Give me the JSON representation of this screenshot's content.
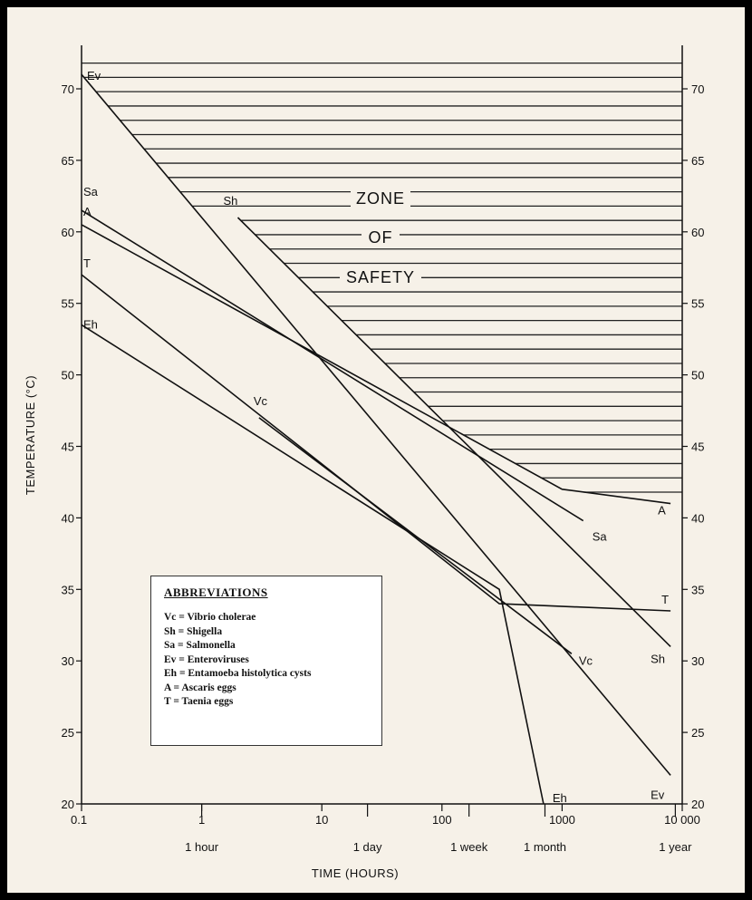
{
  "chart_data": {
    "type": "line",
    "title": "",
    "xlabel": "TIME (HOURS)",
    "ylabel": "TEMPERATURE (°C)",
    "xscale": "log",
    "xlim": [
      0.1,
      10000
    ],
    "ylim": [
      20,
      73
    ],
    "x_ticks": [
      "0.1",
      "1",
      "10",
      "100",
      "1000",
      "10 000"
    ],
    "x_time_markers": [
      {
        "label": "1 hour",
        "x": 1
      },
      {
        "label": "1 day",
        "x": 24
      },
      {
        "label": "1 week",
        "x": 168
      },
      {
        "label": "1 month",
        "x": 720
      },
      {
        "label": "1 year",
        "x": 8760
      }
    ],
    "y_ticks_left": [
      20,
      25,
      30,
      35,
      40,
      45,
      50,
      55,
      60,
      65,
      70
    ],
    "y_ticks_right": [
      20,
      25,
      30,
      35,
      40,
      45,
      50,
      55,
      60,
      65,
      70
    ],
    "zone_label": [
      "ZONE",
      "OF",
      "SAFETY"
    ],
    "series": [
      {
        "label": "Ev",
        "points": [
          [
            0.1,
            71
          ],
          [
            8000,
            22
          ]
        ],
        "label_pos": [
          "start",
          "end"
        ]
      },
      {
        "label": "Sh",
        "points": [
          [
            2,
            61
          ],
          [
            8000,
            31
          ]
        ],
        "label_pos": [
          "start",
          "end"
        ]
      },
      {
        "label": "Sa",
        "points": [
          [
            0.1,
            61.5
          ],
          [
            1500,
            39.8
          ]
        ],
        "label_pos": [
          "start",
          "end"
        ]
      },
      {
        "label": "A",
        "points": [
          [
            0.1,
            60.5
          ],
          [
            1000,
            42
          ],
          [
            8000,
            41
          ]
        ],
        "label_pos": [
          "start",
          "end"
        ]
      },
      {
        "label": "T",
        "points": [
          [
            0.1,
            57
          ],
          [
            300,
            34
          ],
          [
            8000,
            33.5
          ]
        ],
        "label_pos": [
          "start",
          "end"
        ]
      },
      {
        "label": "Eh",
        "points": [
          [
            0.1,
            53.5
          ],
          [
            300,
            35
          ],
          [
            700,
            20
          ]
        ],
        "label_pos": [
          "start",
          "end"
        ]
      },
      {
        "label": "Vc",
        "points": [
          [
            3,
            47
          ],
          [
            1200,
            30.5
          ]
        ],
        "label_pos": [
          "start",
          "end"
        ]
      }
    ],
    "legend": {
      "title": "ABBREVIATIONS",
      "items": [
        "Vc = Vibrio cholerae",
        "Sh = Shigella",
        "Sa = Salmonella",
        "Ev = Enteroviruses",
        "Eh = Entamoeba histolytica cysts",
        "A = Ascaris eggs",
        "T = Taenia eggs"
      ]
    }
  }
}
